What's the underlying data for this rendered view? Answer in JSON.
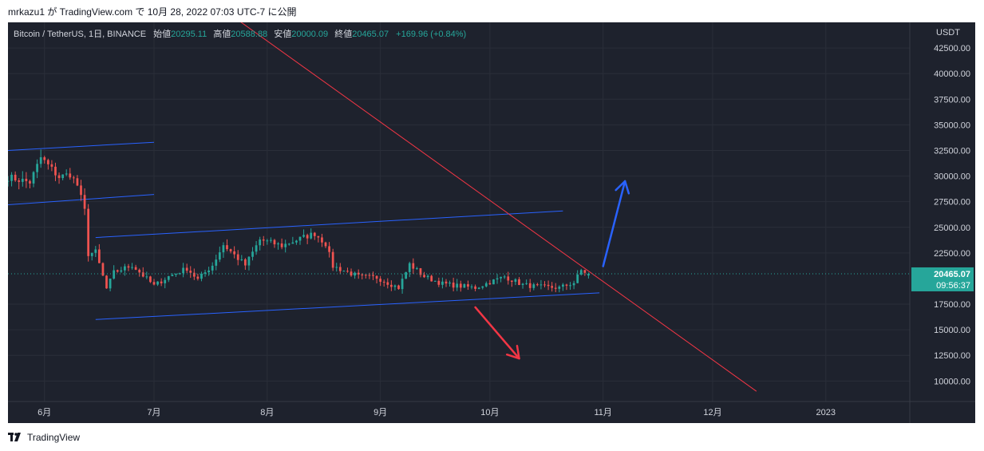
{
  "header": {
    "byline": "mrkazu1 が TradingView.com で 10月 28, 2022 07:03 UTC-7 に公開"
  },
  "legend": {
    "symbol": "Bitcoin / TetherUS, 1日, BINANCE",
    "open_label": "始値",
    "open_value": "20295.11",
    "high_label": "高値",
    "high_value": "20588.88",
    "low_label": "安値",
    "low_value": "20000.09",
    "close_label": "終値",
    "close_value": "20465.07",
    "change": "+169.96 (+0.84%)"
  },
  "price_axis": {
    "currency": "USDT",
    "ticks": [
      "42500.00",
      "40000.00",
      "37500.00",
      "35000.00",
      "32500.00",
      "30000.00",
      "27500.00",
      "25000.00",
      "22500.00",
      "17500.00",
      "15000.00",
      "12500.00",
      "10000.00"
    ],
    "last_price": "20465.07",
    "countdown": "09:56:37"
  },
  "time_axis": {
    "ticks": [
      "6月",
      "7月",
      "8月",
      "9月",
      "10月",
      "11月",
      "12月",
      "2023"
    ]
  },
  "footer": {
    "brand": "TradingView"
  },
  "colors": {
    "background": "#1e222d",
    "up": "#26a69a",
    "down": "#ef5350",
    "channel": "#2962ff",
    "trendline": "#f23645",
    "arrow_up": "#2962ff",
    "arrow_down": "#f23645"
  },
  "chart_data": {
    "type": "candlestick",
    "symbol": "Bitcoin / TetherUS",
    "interval": "1日",
    "exchange": "BINANCE",
    "ylim": [
      8000,
      45000
    ],
    "grid": true,
    "series": [
      {
        "anchors_close": [
          [
            "2022-05-22",
            29900
          ],
          [
            "2022-05-28",
            29400
          ],
          [
            "2022-05-31",
            31800
          ],
          [
            "2022-06-05",
            29900
          ],
          [
            "2022-06-08",
            30200
          ],
          [
            "2022-06-10",
            29100
          ],
          [
            "2022-06-12",
            26600
          ],
          [
            "2022-06-13",
            22400
          ],
          [
            "2022-06-15",
            22600
          ],
          [
            "2022-06-18",
            19000
          ],
          [
            "2022-06-20",
            20600
          ],
          [
            "2022-06-25",
            21300
          ],
          [
            "2022-07-01",
            19300
          ],
          [
            "2022-07-05",
            20200
          ],
          [
            "2022-07-10",
            21000
          ],
          [
            "2022-07-13",
            19900
          ],
          [
            "2022-07-17",
            21300
          ],
          [
            "2022-07-20",
            23300
          ],
          [
            "2022-07-26",
            21300
          ],
          [
            "2022-07-30",
            23800
          ],
          [
            "2022-08-05",
            23200
          ],
          [
            "2022-08-10",
            23900
          ],
          [
            "2022-08-14",
            24400
          ],
          [
            "2022-08-17",
            23400
          ],
          [
            "2022-08-19",
            21200
          ],
          [
            "2022-08-26",
            20200
          ],
          [
            "2022-08-31",
            20100
          ],
          [
            "2022-09-06",
            19100
          ],
          [
            "2022-09-09",
            21400
          ],
          [
            "2022-09-13",
            20200
          ],
          [
            "2022-09-18",
            19500
          ],
          [
            "2022-09-22",
            19300
          ],
          [
            "2022-09-27",
            19100
          ],
          [
            "2022-10-05",
            20200
          ],
          [
            "2022-10-10",
            19400
          ],
          [
            "2022-10-14",
            19200
          ],
          [
            "2022-10-20",
            19100
          ],
          [
            "2022-10-24",
            19600
          ],
          [
            "2022-10-26",
            20800
          ],
          [
            "2022-10-28",
            20465.07
          ]
        ],
        "last_candle": {
          "date": "2022-10-28",
          "open": 20295.11,
          "high": 20588.88,
          "low": 20000.09,
          "close": 20465.07
        }
      }
    ],
    "xlim": [
      "2022-05-22",
      "2023-01-24"
    ],
    "drawings": {
      "upper_channel": [
        [
          [
            "2022-05-22",
            32500
          ],
          [
            "2022-07-01",
            33300
          ]
        ],
        [
          [
            "2022-05-22",
            27200
          ],
          [
            "2022-07-01",
            28200
          ]
        ]
      ],
      "main_channel_top": [
        [
          "2022-06-15",
          24000
        ],
        [
          "2022-10-21",
          26600
        ]
      ],
      "main_channel_bottom": [
        [
          "2022-06-15",
          16000
        ],
        [
          "2022-10-31",
          18600
        ]
      ],
      "descending_trendline": [
        [
          "2022-07-19",
          46500
        ],
        [
          "2022-12-13",
          9000
        ]
      ],
      "arrow_up": [
        [
          "2022-11-01",
          21200
        ],
        [
          "2022-11-07",
          29500
        ]
      ],
      "arrow_down": [
        [
          "2022-09-27",
          17200
        ],
        [
          "2022-10-09",
          12200
        ]
      ]
    }
  }
}
